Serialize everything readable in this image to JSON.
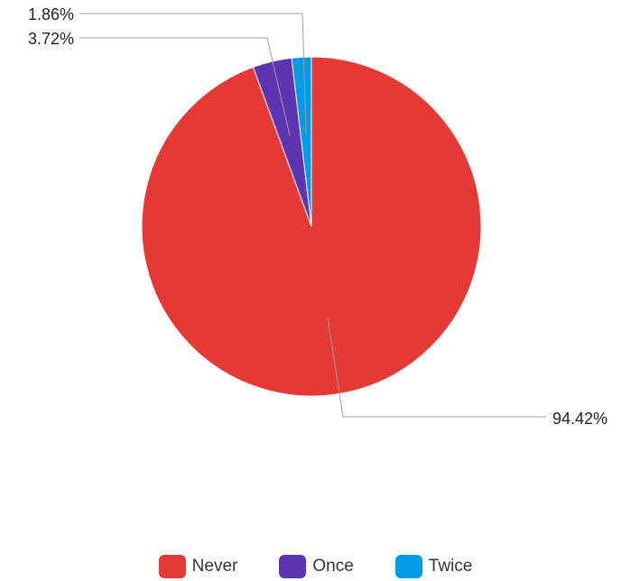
{
  "chart_data": {
    "type": "pie",
    "title": "",
    "slices": [
      {
        "name": "Never",
        "value": 94.42,
        "label": "94.42%",
        "color": "#e53935"
      },
      {
        "name": "Once",
        "value": 3.72,
        "label": "3.72%",
        "color": "#5e35b1"
      },
      {
        "name": "Twice",
        "value": 1.86,
        "label": "1.86%",
        "color": "#039be5"
      }
    ],
    "legend": {
      "position": "bottom"
    }
  }
}
